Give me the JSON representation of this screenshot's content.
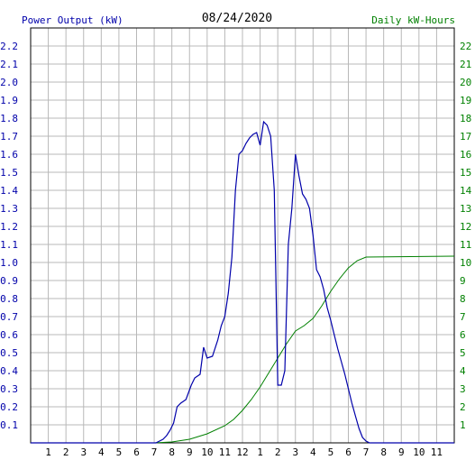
{
  "chart_data": {
    "type": "line",
    "title": "08/24/2020",
    "ylabel_left": "Power Output (kW)",
    "ylabel_right": "Daily kW-Hours",
    "left_axis_color": "#0000aa",
    "right_axis_color": "#008000",
    "grid": true,
    "x_ticks": [
      "1",
      "2",
      "3",
      "4",
      "5",
      "6",
      "7",
      "8",
      "9",
      "10",
      "11",
      "12",
      "1",
      "2",
      "3",
      "4",
      "5",
      "6",
      "7",
      "8",
      "9",
      "10",
      "11"
    ],
    "x_range_hours": [
      0,
      24
    ],
    "y_left_ticks": [
      "0.1",
      "0.2",
      "0.3",
      "0.4",
      "0.5",
      "0.6",
      "0.7",
      "0.8",
      "0.9",
      "1.0",
      "1.1",
      "1.2",
      "1.3",
      "1.4",
      "1.5",
      "1.6",
      "1.7",
      "1.8",
      "1.9",
      "2.0",
      "2.1",
      "2.2"
    ],
    "y_left_range": [
      0,
      2.3
    ],
    "y_right_ticks": [
      "1",
      "2",
      "3",
      "4",
      "5",
      "6",
      "7",
      "8",
      "9",
      "10",
      "11",
      "12",
      "13",
      "14",
      "15",
      "16",
      "17",
      "18",
      "19",
      "20",
      "21",
      "22"
    ],
    "y_right_range": [
      0,
      23
    ],
    "series": [
      {
        "axis": "left",
        "color": "#0000aa",
        "x": [
          0,
          7.1,
          7.3,
          7.5,
          7.7,
          7.9,
          8.1,
          8.3,
          8.5,
          8.8,
          9.1,
          9.3,
          9.6,
          9.8,
          10.0,
          10.3,
          10.6,
          10.8,
          11.0,
          11.2,
          11.4,
          11.6,
          11.8,
          12.0,
          12.2,
          12.4,
          12.6,
          12.8,
          13.0,
          13.2,
          13.4,
          13.6,
          13.8,
          14.0,
          14.2,
          14.4,
          14.6,
          14.8,
          15.0,
          15.2,
          15.4,
          15.6,
          15.8,
          16.0,
          16.2,
          16.4,
          16.6,
          16.8,
          17.0,
          17.2,
          17.4,
          17.6,
          17.8,
          18.0,
          18.2,
          18.4,
          18.6,
          18.8,
          19.0,
          19.2,
          19.4,
          19.6,
          24
        ],
        "y": [
          0,
          0,
          0.01,
          0.02,
          0.04,
          0.07,
          0.11,
          0.2,
          0.22,
          0.24,
          0.32,
          0.36,
          0.38,
          0.53,
          0.47,
          0.48,
          0.57,
          0.65,
          0.7,
          0.83,
          1.03,
          1.4,
          1.6,
          1.62,
          1.66,
          1.69,
          1.71,
          1.72,
          1.65,
          1.78,
          1.76,
          1.7,
          1.4,
          0.32,
          0.32,
          0.4,
          1.1,
          1.3,
          1.6,
          1.48,
          1.38,
          1.35,
          1.3,
          1.15,
          0.96,
          0.92,
          0.85,
          0.75,
          0.68,
          0.6,
          0.52,
          0.45,
          0.38,
          0.3,
          0.22,
          0.15,
          0.08,
          0.03,
          0.01,
          0,
          0,
          0,
          0
        ]
      },
      {
        "axis": "right",
        "color": "#008000",
        "x": [
          0,
          7.0,
          8.0,
          9.0,
          10.0,
          11.0,
          11.5,
          12.0,
          12.5,
          13.0,
          13.5,
          14.0,
          14.5,
          15.0,
          15.5,
          16.0,
          16.5,
          17.0,
          17.5,
          18.0,
          18.5,
          19.0,
          24
        ],
        "y": [
          0,
          0,
          0.05,
          0.2,
          0.5,
          0.95,
          1.3,
          1.8,
          2.4,
          3.1,
          3.9,
          4.7,
          5.5,
          6.2,
          6.5,
          6.9,
          7.6,
          8.4,
          9.1,
          9.7,
          10.1,
          10.3,
          10.35
        ]
      }
    ]
  }
}
